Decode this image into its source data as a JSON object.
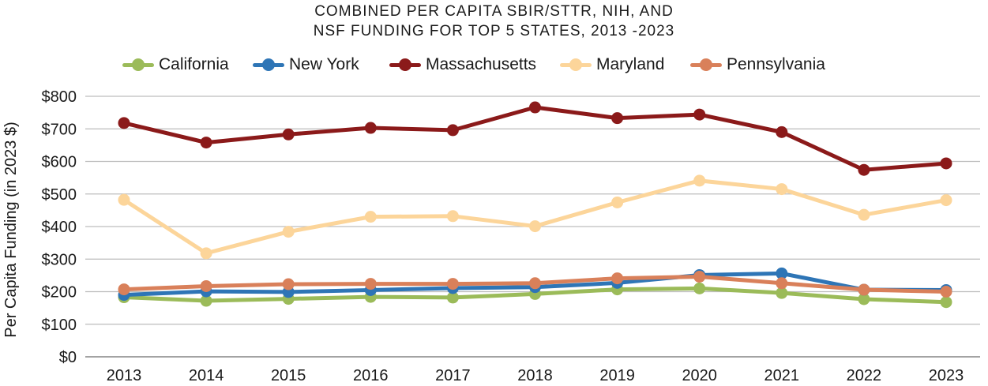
{
  "chart_data": {
    "type": "line",
    "title_lines": [
      "COMBINED PER CAPITA SBIR/STTR, NIH, AND",
      "NSF FUNDING FOR TOP 5 STATES, 2013 -2023"
    ],
    "xlabel": "",
    "ylabel": "Per Capita Funding (in 2023 $)",
    "ylim": [
      0,
      800
    ],
    "yticks": [
      0,
      100,
      200,
      300,
      400,
      500,
      600,
      700,
      800
    ],
    "ytick_labels": [
      "$0",
      "$100",
      "$200",
      "$300",
      "$400",
      "$500",
      "$600",
      "$700",
      "$800"
    ],
    "categories": [
      "2013",
      "2014",
      "2015",
      "2016",
      "2017",
      "2018",
      "2019",
      "2020",
      "2021",
      "2022",
      "2023"
    ],
    "grid": true,
    "legend_position": "top",
    "series": [
      {
        "name": "California",
        "color": "#9bbb59",
        "values": [
          183,
          172,
          178,
          184,
          182,
          193,
          207,
          210,
          196,
          177,
          168
        ]
      },
      {
        "name": "New York",
        "color": "#2e75b6",
        "values": [
          190,
          201,
          199,
          205,
          211,
          214,
          227,
          251,
          256,
          206,
          205
        ]
      },
      {
        "name": "Massachusetts",
        "color": "#8b1a1a",
        "values": [
          718,
          658,
          683,
          703,
          696,
          766,
          733,
          744,
          690,
          574,
          594
        ]
      },
      {
        "name": "Maryland",
        "color": "#fcd59a",
        "values": [
          482,
          318,
          384,
          430,
          432,
          401,
          474,
          541,
          515,
          436,
          481
        ]
      },
      {
        "name": "Pennsylvania",
        "color": "#d9805a",
        "values": [
          207,
          217,
          223,
          224,
          224,
          226,
          241,
          246,
          226,
          206,
          200
        ]
      }
    ]
  }
}
